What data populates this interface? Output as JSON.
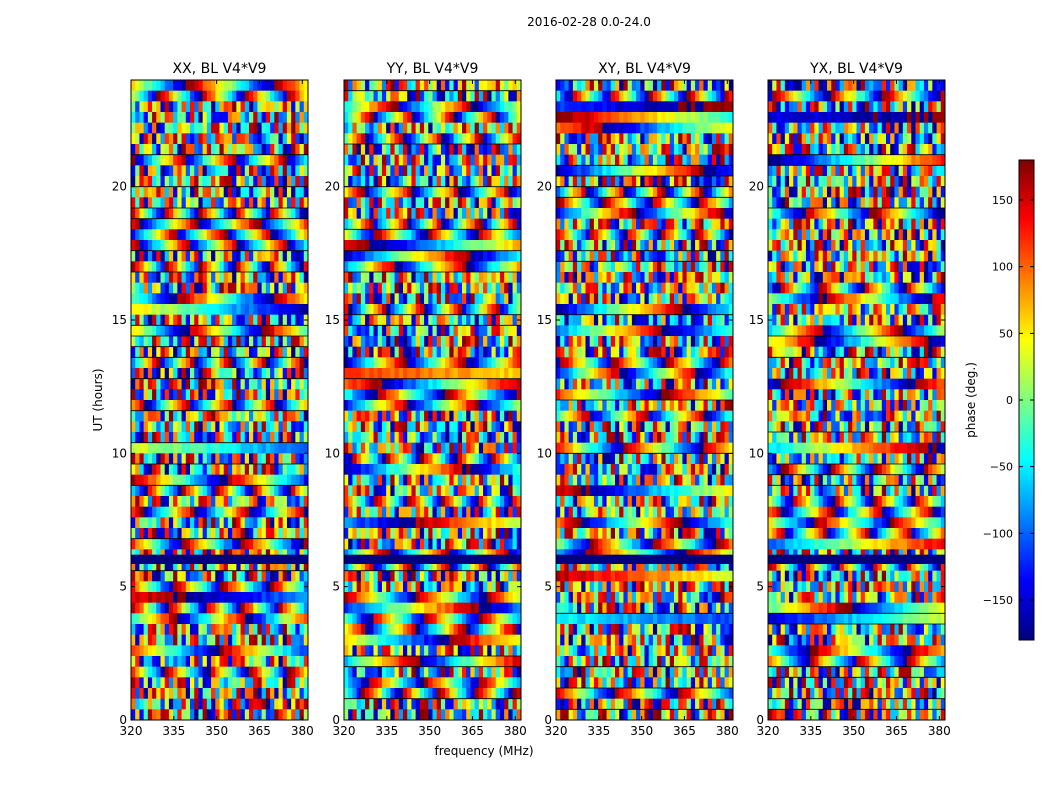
{
  "figure": {
    "suptitle": "2016-02-28 0.0-24.0"
  },
  "chart_data": {
    "type": "heatmap",
    "panels": [
      {
        "title": "XX, BL V4*V9"
      },
      {
        "title": "YY, BL V4*V9"
      },
      {
        "title": "XY, BL V4*V9"
      },
      {
        "title": "YX, BL V4*V9"
      }
    ],
    "xlabel": "frequency (MHz)",
    "ylabel": "UT (hours)",
    "xlim": [
      320,
      382
    ],
    "ylim": [
      0,
      24
    ],
    "xticks": [
      320,
      335,
      350,
      365,
      380
    ],
    "yticks": [
      0,
      5,
      10,
      15,
      20
    ],
    "colorbar": {
      "label": "phase (deg.)",
      "range": [
        -180,
        180
      ],
      "ticks": [
        150,
        100,
        50,
        0,
        -50,
        -100,
        -150
      ],
      "tick_labels": [
        "150",
        "100",
        "50",
        "0",
        "−50",
        "−100",
        "−150"
      ],
      "colormap": "jet",
      "colors": [
        "#00007f",
        "#0000ff",
        "#007fff",
        "#00ffff",
        "#7fff7f",
        "#ffff00",
        "#ff7f00",
        "#ff0000",
        "#7f0000"
      ]
    },
    "grid": false,
    "legend": "none"
  }
}
